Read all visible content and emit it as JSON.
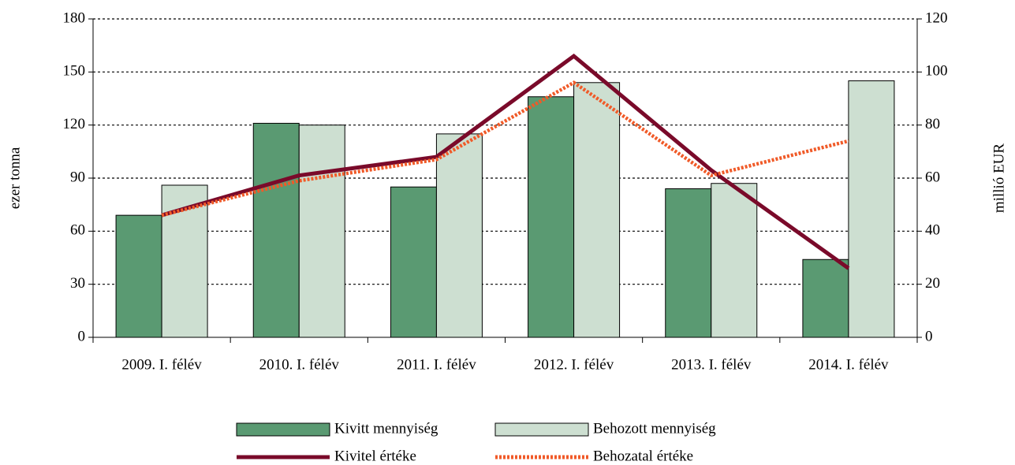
{
  "chart_data": {
    "type": "bar_line",
    "categories": [
      "2009. I. félév",
      "2010. I. félév",
      "2011. I. félév",
      "2012. I. félév",
      "2013. I. félév",
      "2014. I. félév"
    ],
    "series": [
      {
        "name": "Kivitt mennyiség",
        "type": "bar",
        "color": "#5a9a72",
        "values": [
          69,
          121,
          85,
          136,
          84,
          44
        ]
      },
      {
        "name": "Behozott mennyiség",
        "type": "bar",
        "color": "#cddfd1",
        "values": [
          86,
          120,
          115,
          144,
          87,
          145
        ]
      },
      {
        "name": "Kivitel értéke",
        "type": "line",
        "axis": "y2",
        "color": "#7a0a2a",
        "values": [
          46,
          61,
          68,
          106,
          63,
          26
        ]
      },
      {
        "name": "Behozatal értéke",
        "type": "line",
        "axis": "y2",
        "color": "#f05a28",
        "dashed": true,
        "values": [
          46,
          59,
          67,
          96,
          61,
          74
        ]
      }
    ],
    "ylabel": "ezer tonna",
    "y2label": "millió EUR",
    "ylim": [
      0,
      180
    ],
    "yticks": [
      0,
      30,
      60,
      90,
      120,
      150,
      180
    ],
    "y2lim": [
      0,
      120
    ],
    "y2ticks": [
      0,
      20,
      40,
      60,
      80,
      100,
      120
    ],
    "grid": true,
    "legend": "bottom"
  }
}
